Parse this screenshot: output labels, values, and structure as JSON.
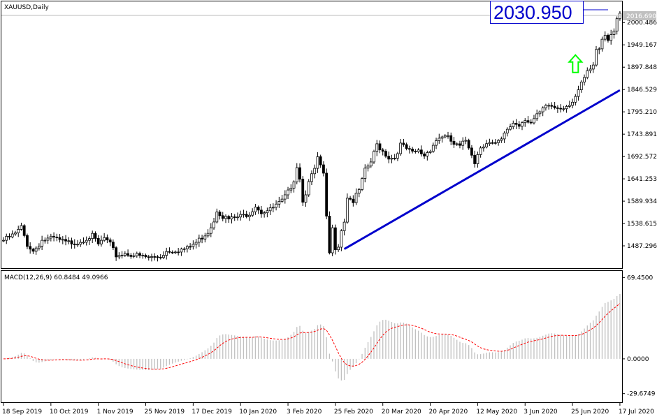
{
  "chart_data": {
    "type": "candlestick",
    "main": {
      "title": "XAUUSD,Daily",
      "ylim": [
        1436.0,
        2049.0
      ],
      "price_ticks": [
        "2000.486",
        "1949.167",
        "1897.848",
        "1846.529",
        "1795.210",
        "1743.891",
        "1692.572",
        "1641.253",
        "1589.934",
        "1538.615",
        "1487.296"
      ],
      "current_price": "2016.690",
      "bid_label": "2030.950",
      "trendline": {
        "start": {
          "x": "20 Mar 2020",
          "y": 1480
        },
        "end": {
          "x": "27 Jul 2020",
          "y": 1845
        }
      },
      "up_arrow": {
        "x": "20 Jul 2020",
        "y": 1905
      },
      "anchors": [
        {
          "d": 0,
          "p": 1500
        },
        {
          "d": 4,
          "p": 1515
        },
        {
          "d": 6,
          "p": 1530
        },
        {
          "d": 8,
          "p": 1490
        },
        {
          "d": 10,
          "p": 1475
        },
        {
          "d": 13,
          "p": 1500
        },
        {
          "d": 17,
          "p": 1505
        },
        {
          "d": 21,
          "p": 1495
        },
        {
          "d": 25,
          "p": 1495
        },
        {
          "d": 28,
          "p": 1505
        },
        {
          "d": 30,
          "p": 1510
        },
        {
          "d": 32,
          "p": 1490
        },
        {
          "d": 34,
          "p": 1505
        },
        {
          "d": 36,
          "p": 1490
        },
        {
          "d": 38,
          "p": 1465
        },
        {
          "d": 41,
          "p": 1470
        },
        {
          "d": 45,
          "p": 1465
        },
        {
          "d": 49,
          "p": 1460
        },
        {
          "d": 53,
          "p": 1463
        },
        {
          "d": 55,
          "p": 1475
        },
        {
          "d": 59,
          "p": 1478
        },
        {
          "d": 62,
          "p": 1481
        },
        {
          "d": 65,
          "p": 1495
        },
        {
          "d": 69,
          "p": 1520
        },
        {
          "d": 71,
          "p": 1545
        },
        {
          "d": 72,
          "p": 1570
        },
        {
          "d": 74,
          "p": 1555
        },
        {
          "d": 76,
          "p": 1548
        },
        {
          "d": 80,
          "p": 1555
        },
        {
          "d": 83,
          "p": 1562
        },
        {
          "d": 85,
          "p": 1580
        },
        {
          "d": 87,
          "p": 1565
        },
        {
          "d": 90,
          "p": 1570
        },
        {
          "d": 94,
          "p": 1590
        },
        {
          "d": 96,
          "p": 1610
        },
        {
          "d": 98,
          "p": 1640
        },
        {
          "d": 99,
          "p": 1670
        },
        {
          "d": 100,
          "p": 1645
        },
        {
          "d": 101,
          "p": 1588
        },
        {
          "d": 102,
          "p": 1610
        },
        {
          "d": 103,
          "p": 1640
        },
        {
          "d": 105,
          "p": 1660
        },
        {
          "d": 106,
          "p": 1690
        },
        {
          "d": 108,
          "p": 1650
        },
        {
          "d": 109,
          "p": 1550
        },
        {
          "d": 110,
          "p": 1470
        },
        {
          "d": 111,
          "p": 1525
        },
        {
          "d": 112,
          "p": 1484
        },
        {
          "d": 113,
          "p": 1490
        },
        {
          "d": 114,
          "p": 1525
        },
        {
          "d": 115,
          "p": 1545
        },
        {
          "d": 116,
          "p": 1600
        },
        {
          "d": 118,
          "p": 1590
        },
        {
          "d": 120,
          "p": 1615
        },
        {
          "d": 122,
          "p": 1660
        },
        {
          "d": 124,
          "p": 1680
        },
        {
          "d": 126,
          "p": 1720
        },
        {
          "d": 128,
          "p": 1705
        },
        {
          "d": 130,
          "p": 1690
        },
        {
          "d": 132,
          "p": 1690
        },
        {
          "d": 134,
          "p": 1720
        },
        {
          "d": 136,
          "p": 1710
        },
        {
          "d": 138,
          "p": 1700
        },
        {
          "d": 140,
          "p": 1705
        },
        {
          "d": 142,
          "p": 1695
        },
        {
          "d": 144,
          "p": 1710
        },
        {
          "d": 146,
          "p": 1730
        },
        {
          "d": 148,
          "p": 1740
        },
        {
          "d": 150,
          "p": 1735
        },
        {
          "d": 152,
          "p": 1720
        },
        {
          "d": 154,
          "p": 1715
        },
        {
          "d": 156,
          "p": 1730
        },
        {
          "d": 158,
          "p": 1700
        },
        {
          "d": 159,
          "p": 1680
        },
        {
          "d": 161,
          "p": 1715
        },
        {
          "d": 163,
          "p": 1725
        },
        {
          "d": 166,
          "p": 1720
        },
        {
          "d": 168,
          "p": 1730
        },
        {
          "d": 170,
          "p": 1755
        },
        {
          "d": 172,
          "p": 1770
        },
        {
          "d": 174,
          "p": 1765
        },
        {
          "d": 176,
          "p": 1780
        },
        {
          "d": 178,
          "p": 1770
        },
        {
          "d": 180,
          "p": 1785
        },
        {
          "d": 182,
          "p": 1800
        },
        {
          "d": 184,
          "p": 1810
        },
        {
          "d": 186,
          "p": 1805
        },
        {
          "d": 188,
          "p": 1805
        },
        {
          "d": 190,
          "p": 1810
        },
        {
          "d": 192,
          "p": 1820
        },
        {
          "d": 194,
          "p": 1840
        },
        {
          "d": 195,
          "p": 1860
        },
        {
          "d": 197,
          "p": 1885
        },
        {
          "d": 199,
          "p": 1900
        },
        {
          "d": 200,
          "p": 1935
        },
        {
          "d": 201,
          "p": 1945
        },
        {
          "d": 202,
          "p": 1965
        },
        {
          "d": 203,
          "p": 1975
        },
        {
          "d": 204,
          "p": 1960
        },
        {
          "d": 205,
          "p": 1975
        },
        {
          "d": 206,
          "p": 1985
        },
        {
          "d": 207,
          "p": 2010
        },
        {
          "d": 208,
          "p": 2016
        }
      ]
    },
    "macd": {
      "label": "MACD(12,26,9) 60.8484 49.0966",
      "ylim": [
        -37,
        75
      ],
      "ticks": [
        "69.4500",
        "0.0000",
        "-29.6749"
      ],
      "signal_color": "#ff0000",
      "histogram_color": "#c0c0c0"
    },
    "x_dates": [
      {
        "label": "18 Sep 2019",
        "d": 0
      },
      {
        "label": "10 Oct 2019",
        "d": 16
      },
      {
        "label": "1 Nov 2019",
        "d": 32
      },
      {
        "label": "25 Nov 2019",
        "d": 48
      },
      {
        "label": "17 Dec 2019",
        "d": 64
      },
      {
        "label": "10 Jan 2020",
        "d": 80
      },
      {
        "label": "3 Feb 2020",
        "d": 96
      },
      {
        "label": "25 Feb 2020",
        "d": 112
      },
      {
        "label": "20 Mar 2020",
        "d": 128
      },
      {
        "label": "20 Apr 2020",
        "d": 144
      },
      {
        "label": "12 May 2020",
        "d": 160
      },
      {
        "label": "3 Jun 2020",
        "d": 176
      },
      {
        "label": "25 Jun 2020",
        "d": 192
      },
      {
        "label": "17 Jul 2020",
        "d": 208
      }
    ],
    "colors": {
      "trendline": "#0000cc",
      "arrow": "#00ff00",
      "bid": "#0000cc"
    }
  }
}
